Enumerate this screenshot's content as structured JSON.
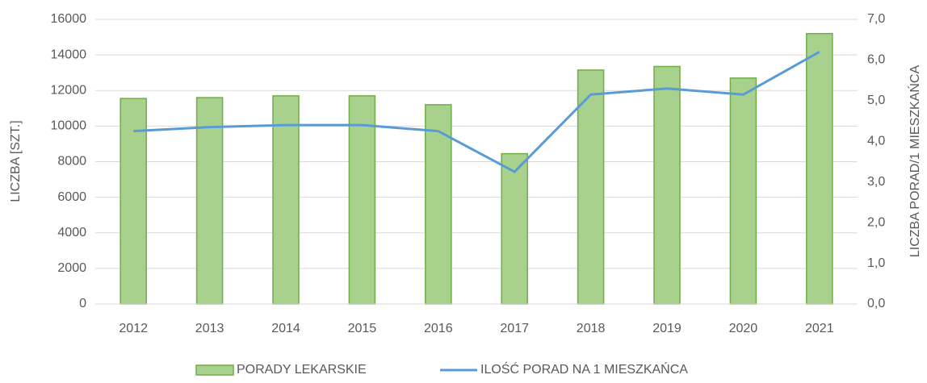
{
  "chart_data": {
    "type": "bar",
    "categories": [
      "2012",
      "2013",
      "2014",
      "2015",
      "2016",
      "2017",
      "2018",
      "2019",
      "2020",
      "2021"
    ],
    "series": [
      {
        "name": "PORADY LEKARSKIE",
        "type": "bar",
        "color": "#a9d18e",
        "edgecolor": "#70ad47",
        "values": [
          11550,
          11600,
          11700,
          11700,
          11200,
          8450,
          13150,
          13350,
          12700,
          15200
        ]
      },
      {
        "name": "ILOŚĆ PORAD NA 1 MIESZKAŃCA",
        "type": "line",
        "axis": "y2",
        "color": "#5b9bd5",
        "values": [
          4.25,
          4.35,
          4.4,
          4.4,
          4.25,
          3.25,
          5.15,
          5.3,
          5.15,
          6.2
        ]
      }
    ],
    "ylabel": "LICZBA [SZT.]",
    "y2label": "LICZBA PORAD/1 MIESZKAŃCA",
    "ylim": [
      0,
      16000
    ],
    "yticks": [
      0,
      2000,
      4000,
      6000,
      8000,
      10000,
      12000,
      14000,
      16000
    ],
    "y2lim": [
      0,
      7
    ],
    "y2ticks": [
      {
        "value": 0,
        "label": "0,0"
      },
      {
        "value": 1,
        "label": "1,0"
      },
      {
        "value": 2,
        "label": "2,0"
      },
      {
        "value": 3,
        "label": "3,0"
      },
      {
        "value": 4,
        "label": "4,0"
      },
      {
        "value": 5,
        "label": "5,0"
      },
      {
        "value": 6,
        "label": "6,0"
      },
      {
        "value": 7,
        "label": "7,0"
      }
    ],
    "grid": true,
    "legend": "bottom"
  }
}
